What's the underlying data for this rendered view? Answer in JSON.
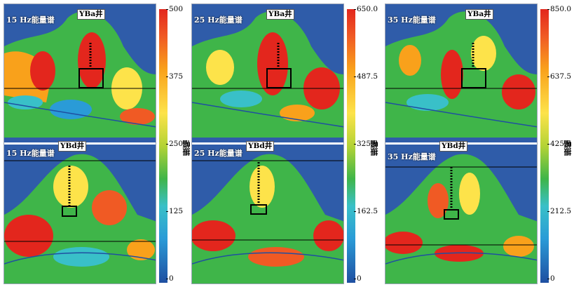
{
  "panels": [
    {
      "top_freq": "15 Hz能量谱",
      "top_well": "YBa井",
      "bottom_freq": "15 Hz能量谱",
      "bottom_well": "YBd井",
      "ticks": [
        "500",
        "375",
        "250",
        "125",
        "0"
      ],
      "unit": "振幅"
    },
    {
      "top_freq": "25 Hz能量谱",
      "top_well": "YBa井",
      "bottom_freq": "25 Hz能量谱",
      "bottom_well": "YBd井",
      "ticks": [
        "650.0",
        "487.5",
        "325.0",
        "162.5",
        "0"
      ],
      "unit": "振幅"
    },
    {
      "top_freq": "35 Hz能量谱",
      "top_well": "YBa井",
      "bottom_freq": "35 Hz能量谱",
      "bottom_well": "YBd井",
      "ticks": [
        "850.0",
        "637.5",
        "425.0",
        "212.5",
        "0"
      ],
      "unit": "振幅"
    }
  ],
  "colors": {
    "background": "#2f5ca9",
    "colormap": [
      "#e3261d",
      "#f9a11b",
      "#fde34a",
      "#3fb549",
      "#39c0c8",
      "#1f4fa1"
    ]
  }
}
